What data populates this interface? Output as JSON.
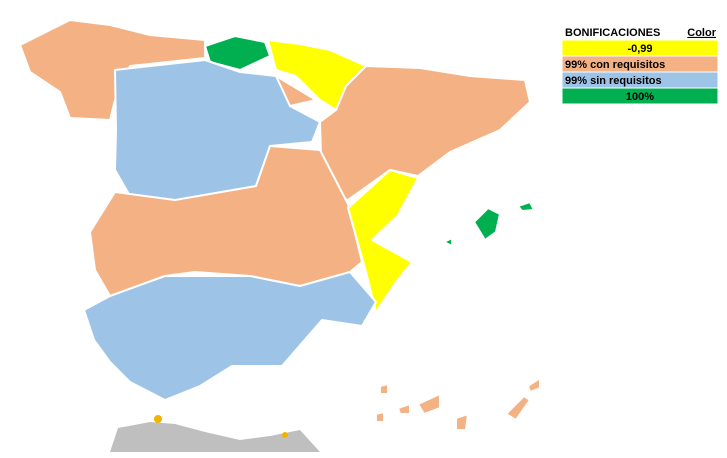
{
  "legend": {
    "title": "BONIFICACIONES",
    "color_header": "Color",
    "items": [
      {
        "label": "-0,99",
        "color": "#ffff00",
        "align": "center"
      },
      {
        "label": "99% con requisitos",
        "color": "#f4b183",
        "align": "left"
      },
      {
        "label": "99% sin requisitos",
        "color": "#9dc3e6",
        "align": "left"
      },
      {
        "label": "100%",
        "color": "#00b050",
        "align": "center"
      }
    ]
  }
}
